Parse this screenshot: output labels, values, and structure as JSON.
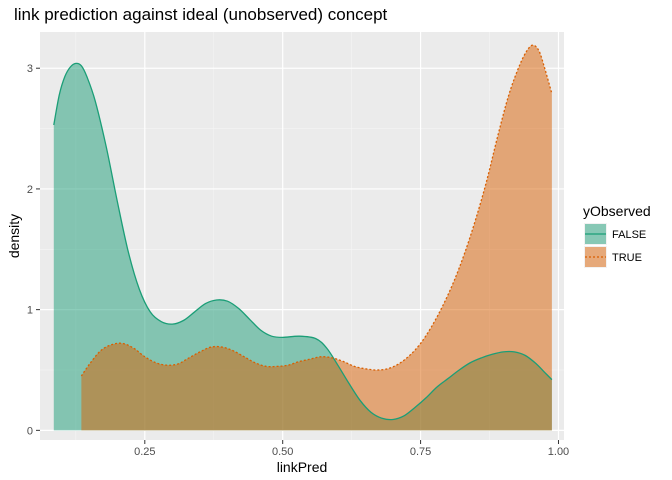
{
  "chart_data": {
    "type": "area",
    "title": "link prediction against ideal (unobserved) concept",
    "xlabel": "linkPred",
    "ylabel": "density",
    "xlim": [
      0.06,
      1.01
    ],
    "ylim": [
      -0.08,
      3.3
    ],
    "xticks": [
      0.25,
      0.5,
      0.75,
      1.0
    ],
    "xtick_labels": [
      "0.25",
      "0.50",
      "0.75",
      "1.00"
    ],
    "yticks": [
      0,
      1,
      2,
      3
    ],
    "ytick_labels": [
      "0",
      "1",
      "2",
      "3"
    ],
    "grid": true,
    "legend": {
      "title": "yObserved",
      "placement": "right"
    },
    "series": [
      {
        "name": "FALSE",
        "color": "#1b9e77",
        "line_style": "solid",
        "points": [
          [
            0.085,
            2.53
          ],
          [
            0.095,
            2.78
          ],
          [
            0.105,
            2.93
          ],
          [
            0.115,
            3.01
          ],
          [
            0.125,
            3.04
          ],
          [
            0.135,
            3.02
          ],
          [
            0.145,
            2.93
          ],
          [
            0.16,
            2.73
          ],
          [
            0.18,
            2.35
          ],
          [
            0.2,
            1.9
          ],
          [
            0.22,
            1.48
          ],
          [
            0.24,
            1.17
          ],
          [
            0.26,
            0.98
          ],
          [
            0.28,
            0.9
          ],
          [
            0.3,
            0.88
          ],
          [
            0.32,
            0.91
          ],
          [
            0.34,
            0.98
          ],
          [
            0.36,
            1.05
          ],
          [
            0.38,
            1.08
          ],
          [
            0.4,
            1.07
          ],
          [
            0.42,
            1.01
          ],
          [
            0.44,
            0.92
          ],
          [
            0.46,
            0.83
          ],
          [
            0.48,
            0.78
          ],
          [
            0.5,
            0.77
          ],
          [
            0.53,
            0.78
          ],
          [
            0.56,
            0.76
          ],
          [
            0.58,
            0.68
          ],
          [
            0.6,
            0.54
          ],
          [
            0.62,
            0.39
          ],
          [
            0.64,
            0.25
          ],
          [
            0.66,
            0.15
          ],
          [
            0.68,
            0.1
          ],
          [
            0.7,
            0.09
          ],
          [
            0.72,
            0.12
          ],
          [
            0.74,
            0.19
          ],
          [
            0.76,
            0.27
          ],
          [
            0.78,
            0.36
          ],
          [
            0.8,
            0.43
          ],
          [
            0.82,
            0.5
          ],
          [
            0.84,
            0.56
          ],
          [
            0.86,
            0.6
          ],
          [
            0.88,
            0.63
          ],
          [
            0.9,
            0.65
          ],
          [
            0.92,
            0.65
          ],
          [
            0.94,
            0.62
          ],
          [
            0.96,
            0.55
          ],
          [
            0.975,
            0.48
          ],
          [
            0.988,
            0.42
          ]
        ]
      },
      {
        "name": "TRUE",
        "color": "#d95f02",
        "line_style": "dotted",
        "points": [
          [
            0.135,
            0.45
          ],
          [
            0.15,
            0.55
          ],
          [
            0.17,
            0.66
          ],
          [
            0.19,
            0.71
          ],
          [
            0.21,
            0.72
          ],
          [
            0.23,
            0.68
          ],
          [
            0.25,
            0.61
          ],
          [
            0.27,
            0.56
          ],
          [
            0.29,
            0.54
          ],
          [
            0.31,
            0.55
          ],
          [
            0.33,
            0.6
          ],
          [
            0.35,
            0.65
          ],
          [
            0.37,
            0.69
          ],
          [
            0.39,
            0.69
          ],
          [
            0.41,
            0.66
          ],
          [
            0.43,
            0.61
          ],
          [
            0.45,
            0.56
          ],
          [
            0.47,
            0.53
          ],
          [
            0.49,
            0.53
          ],
          [
            0.51,
            0.54
          ],
          [
            0.53,
            0.57
          ],
          [
            0.55,
            0.59
          ],
          [
            0.57,
            0.61
          ],
          [
            0.59,
            0.6
          ],
          [
            0.61,
            0.57
          ],
          [
            0.63,
            0.53
          ],
          [
            0.65,
            0.51
          ],
          [
            0.67,
            0.5
          ],
          [
            0.69,
            0.51
          ],
          [
            0.71,
            0.55
          ],
          [
            0.73,
            0.62
          ],
          [
            0.75,
            0.72
          ],
          [
            0.77,
            0.86
          ],
          [
            0.79,
            1.03
          ],
          [
            0.81,
            1.23
          ],
          [
            0.83,
            1.47
          ],
          [
            0.85,
            1.75
          ],
          [
            0.87,
            2.07
          ],
          [
            0.89,
            2.44
          ],
          [
            0.91,
            2.78
          ],
          [
            0.93,
            3.03
          ],
          [
            0.945,
            3.16
          ],
          [
            0.955,
            3.19
          ],
          [
            0.965,
            3.14
          ],
          [
            0.975,
            3.0
          ],
          [
            0.988,
            2.79
          ]
        ]
      }
    ]
  }
}
